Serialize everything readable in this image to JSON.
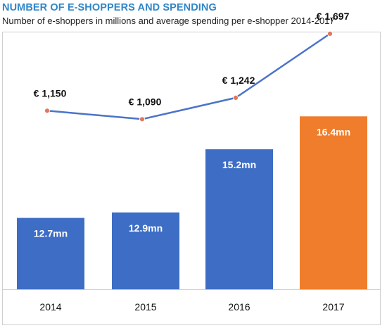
{
  "header": {
    "title": "NUMBER OF E-SHOPPERS AND SPENDING",
    "subtitle": "Number of e-shoppers in millions and average spending per e-shopper 2014-2017"
  },
  "chart_data": {
    "type": "bar",
    "categories": [
      "2014",
      "2015",
      "2016",
      "2017"
    ],
    "series": [
      {
        "type": "bar",
        "values": [
          12.7,
          12.9,
          15.2,
          16.4
        ],
        "labels": [
          "12.7mn",
          "12.9mn",
          "15.2mn",
          "16.4mn"
        ],
        "colors": [
          "#3d6dc4",
          "#3d6dc4",
          "#3d6dc4",
          "#ef7d2b"
        ]
      },
      {
        "type": "line",
        "values": [
          1150,
          1090,
          1242,
          1697
        ],
        "labels": [
          "€ 1,150",
          "€ 1,090",
          "€ 1,242",
          "€ 1,697"
        ],
        "color": "#4a74c9",
        "marker_color": "#e0775c"
      }
    ],
    "grid": false,
    "legend": "none"
  }
}
